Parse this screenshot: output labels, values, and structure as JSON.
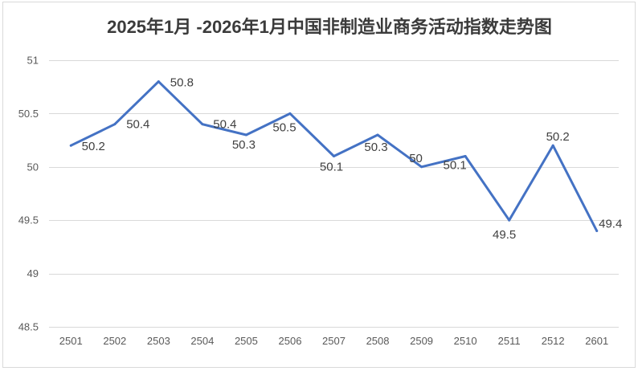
{
  "chart_data": {
    "type": "line",
    "title": "2025年1月 -2026年1月中国非制造业商务活动指数走势图",
    "categories": [
      "2501",
      "2502",
      "2503",
      "2504",
      "2505",
      "2506",
      "2507",
      "2508",
      "2509",
      "2510",
      "2511",
      "2512",
      "2601"
    ],
    "series": [
      {
        "values": [
          50.2,
          50.4,
          50.8,
          50.4,
          50.3,
          50.5,
          50.1,
          50.3,
          50,
          50.1,
          49.5,
          50.2,
          49.4
        ],
        "color": "#4472C4"
      }
    ],
    "yticks": [
      48.5,
      49,
      49.5,
      50,
      50.5,
      51
    ],
    "ylim": [
      48.5,
      51
    ],
    "grid": true,
    "grid_color": "#D9D9D9",
    "data_labels": true
  }
}
